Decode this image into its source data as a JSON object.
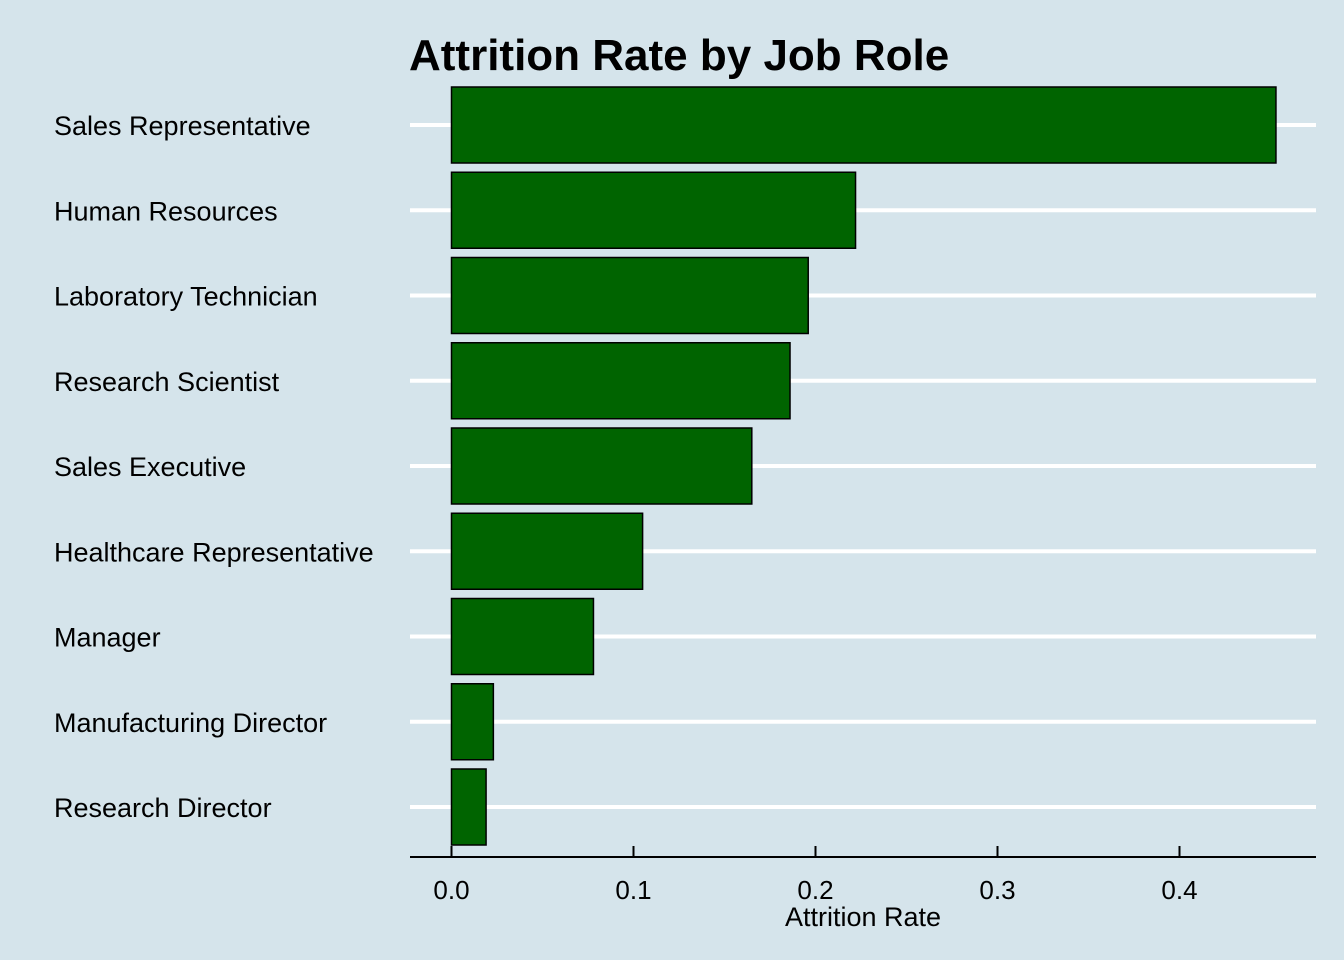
{
  "chart_data": {
    "type": "bar",
    "orientation": "horizontal",
    "title": "Attrition Rate by Job Role",
    "xlabel": "Attrition Rate",
    "ylabel": "",
    "categories": [
      "Sales Representative",
      "Human Resources",
      "Laboratory Technician",
      "Research Scientist",
      "Sales Executive",
      "Healthcare Representative",
      "Manager",
      "Manufacturing Director",
      "Research Director"
    ],
    "values": [
      0.453,
      0.222,
      0.196,
      0.186,
      0.165,
      0.105,
      0.078,
      0.023,
      0.019
    ],
    "xlim": [
      0,
      0.475
    ],
    "xticks": [
      0.0,
      0.1,
      0.2,
      0.3,
      0.4
    ],
    "xtick_labels": [
      "0.0",
      "0.1",
      "0.2",
      "0.3",
      "0.4"
    ],
    "grid": "horizontal",
    "legend": "none",
    "colors": {
      "bar_fill": "#006400",
      "bar_stroke": "#000000",
      "background": "#d5e4eb",
      "gridline": "#ffffff",
      "axis": "#000000"
    }
  }
}
